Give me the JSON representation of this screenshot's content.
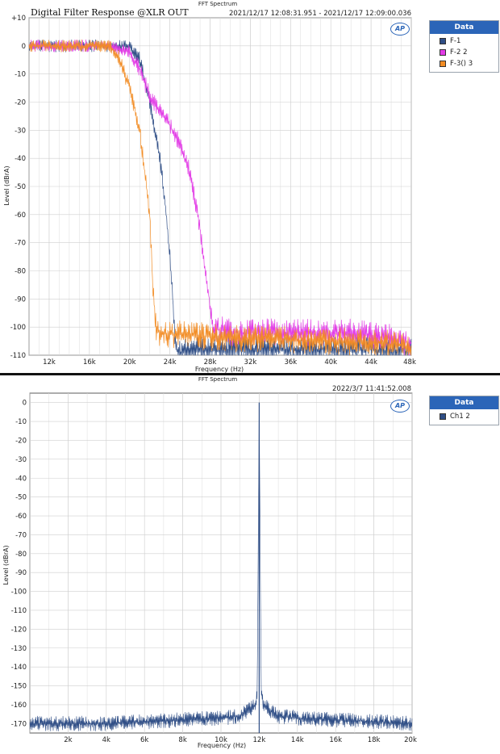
{
  "panels": [
    {
      "header": "FFT Spectrum",
      "title": "Digital Filter Response @XLR OUT",
      "timestamp": "2021/12/17 12:08:31.951 - 2021/12/17 12:09:00.036",
      "legend_header": "Data",
      "legend_items": [
        {
          "label": "F-1",
          "color": "#2f4e86"
        },
        {
          "label": "F-2 2",
          "color": "#e23be6"
        },
        {
          "label": "F-3() 3",
          "color": "#f28c24"
        }
      ]
    },
    {
      "header": "FFT Spectrum",
      "title": "",
      "timestamp": "2022/3/7 11:41:52.008",
      "legend_header": "Data",
      "legend_items": [
        {
          "label": "Ch1 2",
          "color": "#2f4e86"
        }
      ]
    }
  ],
  "chart_data": [
    {
      "type": "line",
      "title": "Digital Filter Response @XLR OUT",
      "xlabel": "Frequency (Hz)",
      "ylabel": "Level (dBrA)",
      "xlim": [
        10000,
        48000
      ],
      "ylim": [
        -110,
        10
      ],
      "x_ticks": [
        "12k",
        "16k",
        "20k",
        "24k",
        "28k",
        "32k",
        "36k",
        "40k",
        "44k",
        "48k"
      ],
      "y_ticks": [
        "+10",
        "0",
        "-10",
        "-20",
        "-30",
        "-40",
        "-50",
        "-60",
        "-70",
        "-80",
        "-90",
        "-100",
        "-110"
      ],
      "grid": true,
      "legend": "right",
      "series": [
        {
          "name": "F-1",
          "color": "#2f4e86",
          "x": [
            10000,
            14000,
            18000,
            20000,
            21000,
            22000,
            23000,
            23500,
            24000,
            24300,
            24500,
            24700,
            25000,
            28000,
            32000,
            36000,
            40000,
            44000,
            48000
          ],
          "y": [
            0,
            0,
            0,
            0,
            -5,
            -20,
            -40,
            -55,
            -75,
            -90,
            -105,
            -108,
            -109,
            -108,
            -108,
            -108,
            -108,
            -108,
            -109
          ]
        },
        {
          "name": "F-2 2",
          "color": "#e23be6",
          "x": [
            10000,
            14000,
            18000,
            20000,
            21000,
            22000,
            23000,
            24000,
            25000,
            26000,
            27000,
            27500,
            28000,
            28300,
            30000,
            32000,
            34000,
            36000,
            38000,
            40000,
            42000,
            44000,
            46000,
            48000
          ],
          "y": [
            0,
            0,
            0,
            -2,
            -8,
            -18,
            -23,
            -28,
            -35,
            -45,
            -65,
            -80,
            -92,
            -100,
            -102,
            -102,
            -102,
            -102,
            -102,
            -102,
            -102,
            -103,
            -104,
            -106
          ]
        },
        {
          "name": "F-3() 3",
          "color": "#f28c24",
          "x": [
            10000,
            14000,
            18000,
            19000,
            20000,
            21000,
            21500,
            22000,
            22300,
            22600,
            23000,
            26000,
            30000,
            34000,
            38000,
            42000,
            46000,
            48000
          ],
          "y": [
            0,
            0,
            0,
            -5,
            -15,
            -30,
            -45,
            -60,
            -85,
            -100,
            -102,
            -103,
            -104,
            -104,
            -105,
            -105,
            -106,
            -107
          ]
        }
      ]
    },
    {
      "type": "line",
      "title": "",
      "xlabel": "Frequency (Hz)",
      "ylabel": "Level (dBrA)",
      "xlim": [
        0,
        20000
      ],
      "ylim": [
        -175,
        5
      ],
      "x_ticks": [
        "2k",
        "4k",
        "6k",
        "8k",
        "10k",
        "12k",
        "14k",
        "16k",
        "18k",
        "20k"
      ],
      "y_ticks": [
        "0",
        "-10",
        "-20",
        "-30",
        "-40",
        "-50",
        "-60",
        "-70",
        "-80",
        "-90",
        "-100",
        "-110",
        "-120",
        "-130",
        "-140",
        "-150",
        "-160",
        "-170"
      ],
      "grid": true,
      "legend": "right",
      "series": [
        {
          "name": "Ch1 2",
          "color": "#2f4e86",
          "x": [
            0,
            2000,
            4000,
            6000,
            8000,
            10000,
            11000,
            11800,
            11900,
            12000,
            12100,
            12200,
            13000,
            14000,
            16000,
            18000,
            20000
          ],
          "y": [
            -170,
            -170,
            -170,
            -169,
            -168,
            -167,
            -166,
            -160,
            -152,
            0,
            -152,
            -160,
            -166,
            -167,
            -168,
            -169,
            -170
          ]
        }
      ]
    }
  ]
}
